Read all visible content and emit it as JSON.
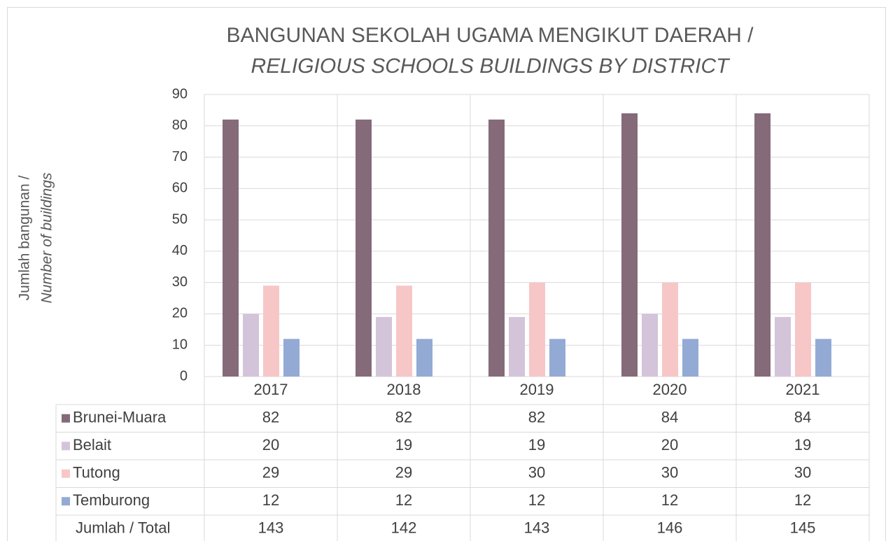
{
  "chart_data": {
    "type": "bar",
    "title": [
      "BANGUNAN SEKOLAH UGAMA MENGIKUT DAERAH /",
      "RELIGIOUS SCHOOLS BUILDINGS BY DISTRICT"
    ],
    "y_label": [
      "Jumlah bangunan /",
      "Number of buildings"
    ],
    "categories": [
      "2017",
      "2018",
      "2019",
      "2020",
      "2021"
    ],
    "series": [
      {
        "name": "Brunei-Muara",
        "color": "#856a7a",
        "values": [
          82,
          82,
          82,
          84,
          84
        ]
      },
      {
        "name": "Belait",
        "color": "#d4c4da",
        "values": [
          20,
          19,
          19,
          20,
          19
        ]
      },
      {
        "name": "Tutong",
        "color": "#f7c7c7",
        "values": [
          29,
          29,
          30,
          30,
          30
        ]
      },
      {
        "name": "Temburong",
        "color": "#93aad5",
        "values": [
          12,
          12,
          12,
          12,
          12
        ]
      }
    ],
    "totals": {
      "name": "Jumlah / Total",
      "values": [
        143,
        142,
        143,
        146,
        145
      ]
    },
    "ylim": [
      0,
      90
    ],
    "yticks": [
      0,
      10,
      20,
      30,
      40,
      50,
      60,
      70,
      80,
      90
    ],
    "grid": true
  }
}
